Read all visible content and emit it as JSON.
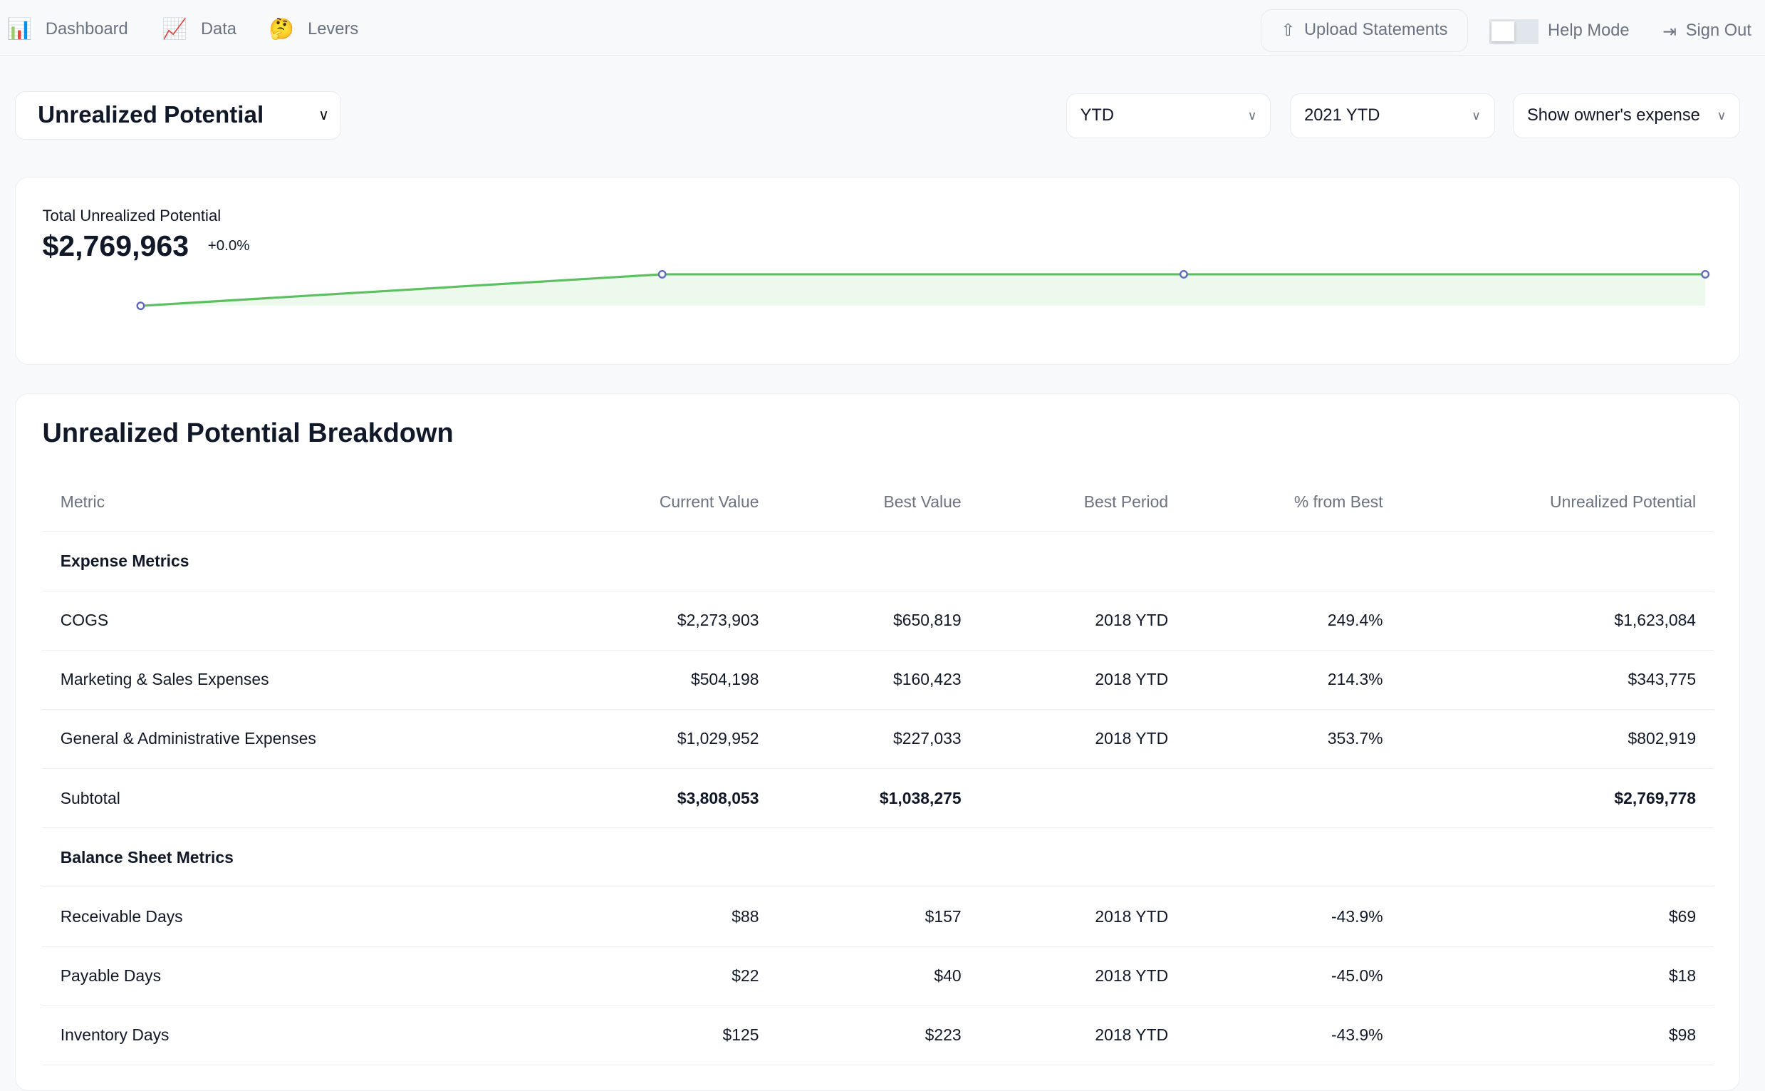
{
  "nav": {
    "items": [
      {
        "label": "Dashboard",
        "icon": "bar-chart-icon",
        "glyph": "📊"
      },
      {
        "label": "Data",
        "icon": "chart-increasing-icon",
        "glyph": "📈"
      },
      {
        "label": "Levers",
        "icon": "thinking-face-icon",
        "glyph": "🤔"
      }
    ],
    "upload_label": "Upload Statements",
    "help_mode_label": "Help Mode",
    "help_mode_on": false,
    "sign_out_label": "Sign Out"
  },
  "metric_select": {
    "value": "Unrealized Potential"
  },
  "filters": {
    "period": "YTD",
    "year": "2021 YTD",
    "owner_expense": "Show owner's expense"
  },
  "summary": {
    "label": "Total Unrealized Potential",
    "value": "$2,769,963",
    "change": "+0.0%",
    "line_color": "#5cbf60",
    "point_color": "#5c6bc0",
    "sparkline_relative": [
      0,
      1,
      1,
      1
    ]
  },
  "breakdown": {
    "title": "Unrealized Potential Breakdown",
    "columns": [
      "Metric",
      "Current Value",
      "Best Value",
      "Best Period",
      "% from Best",
      "Unrealized Potential"
    ],
    "rows": [
      {
        "type": "section",
        "cells": [
          "Expense Metrics",
          "",
          "",
          "",
          "",
          ""
        ]
      },
      {
        "type": "row",
        "cells": [
          "COGS",
          "$2,273,903",
          "$650,819",
          "2018 YTD",
          "249.4%",
          "$1,623,084"
        ]
      },
      {
        "type": "row",
        "cells": [
          "Marketing & Sales Expenses",
          "$504,198",
          "$160,423",
          "2018 YTD",
          "214.3%",
          "$343,775"
        ]
      },
      {
        "type": "row",
        "cells": [
          "General & Administrative Expenses",
          "$1,029,952",
          "$227,033",
          "2018 YTD",
          "353.7%",
          "$802,919"
        ]
      },
      {
        "type": "bold",
        "cells": [
          "Subtotal",
          "$3,808,053",
          "$1,038,275",
          "",
          "",
          "$2,769,778"
        ]
      },
      {
        "type": "section",
        "cells": [
          "Balance Sheet Metrics",
          "",
          "",
          "",
          "",
          ""
        ]
      },
      {
        "type": "row",
        "cells": [
          "Receivable Days",
          "$88",
          "$157",
          "2018 YTD",
          "-43.9%",
          "$69"
        ]
      },
      {
        "type": "row",
        "cells": [
          "Payable Days",
          "$22",
          "$40",
          "2018 YTD",
          "-45.0%",
          "$18"
        ]
      },
      {
        "type": "row",
        "cells": [
          "Inventory Days",
          "$125",
          "$223",
          "2018 YTD",
          "-43.9%",
          "$98"
        ]
      }
    ]
  }
}
